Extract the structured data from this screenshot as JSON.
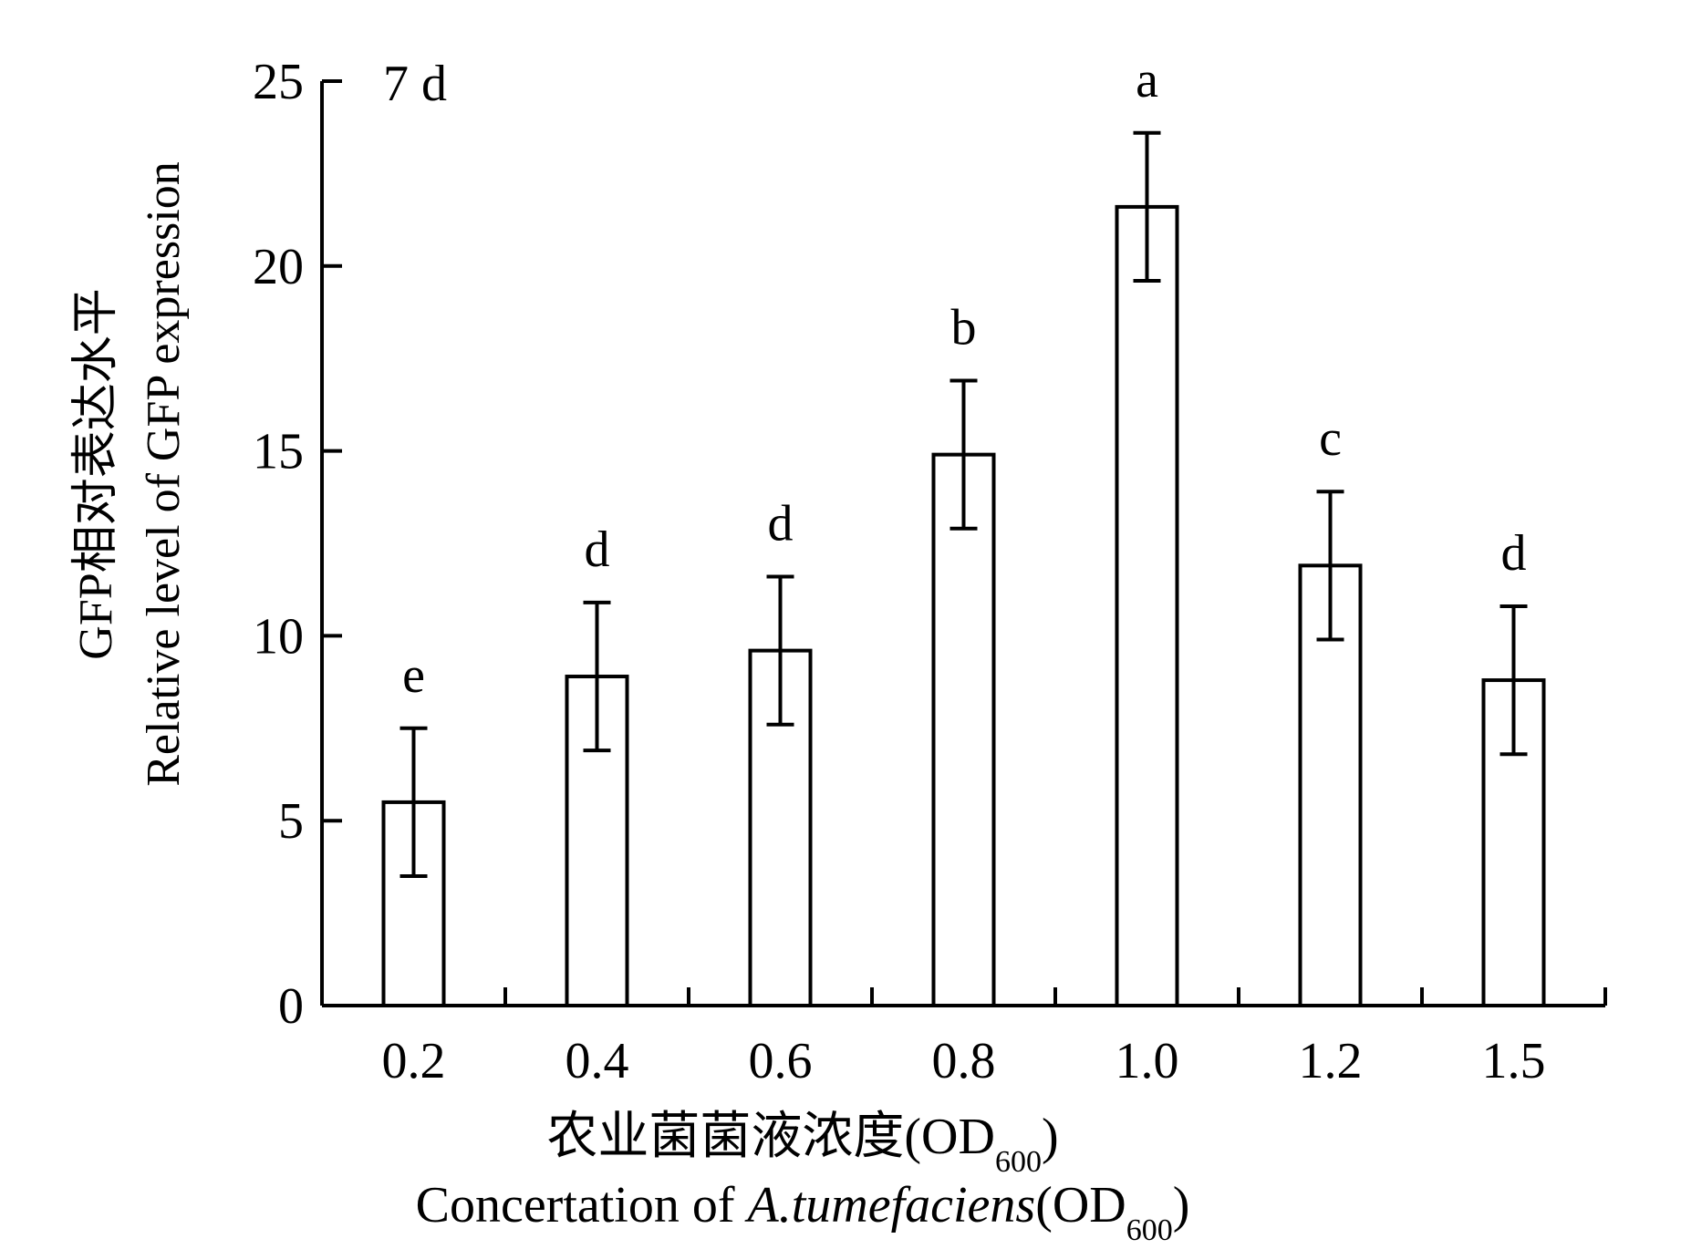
{
  "chart_data": {
    "type": "bar",
    "panel_label": "7 d",
    "xlabel_cn": "农业菌菌液浓度(OD",
    "xlabel_cn_sub": "600",
    "xlabel_cn_close": ")",
    "xlabel_en_prefix": "Concertation of ",
    "xlabel_en_italic": "A.tumefaciens",
    "xlabel_en_suffix": "(OD",
    "xlabel_en_sub": "600",
    "xlabel_en_close": ")",
    "ylabel_cn": "GFP相对表达水平",
    "ylabel_en": "Relative level of GFP expression",
    "ylim": [
      0,
      25
    ],
    "yticks": [
      0,
      5,
      10,
      15,
      20,
      25
    ],
    "categories": [
      "0.2",
      "0.4",
      "0.6",
      "0.8",
      "1.0",
      "1.2",
      "1.5"
    ],
    "values": [
      5.5,
      8.9,
      9.6,
      14.9,
      21.6,
      11.9,
      8.8
    ],
    "errors": [
      2.0,
      2.0,
      2.0,
      2.0,
      2.0,
      2.0,
      2.0
    ],
    "significance": [
      "e",
      "d",
      "d",
      "b",
      "a",
      "c",
      "d"
    ],
    "grid": false,
    "colors": {
      "bar_fill": "#ffffff",
      "bar_stroke": "#000000"
    }
  }
}
